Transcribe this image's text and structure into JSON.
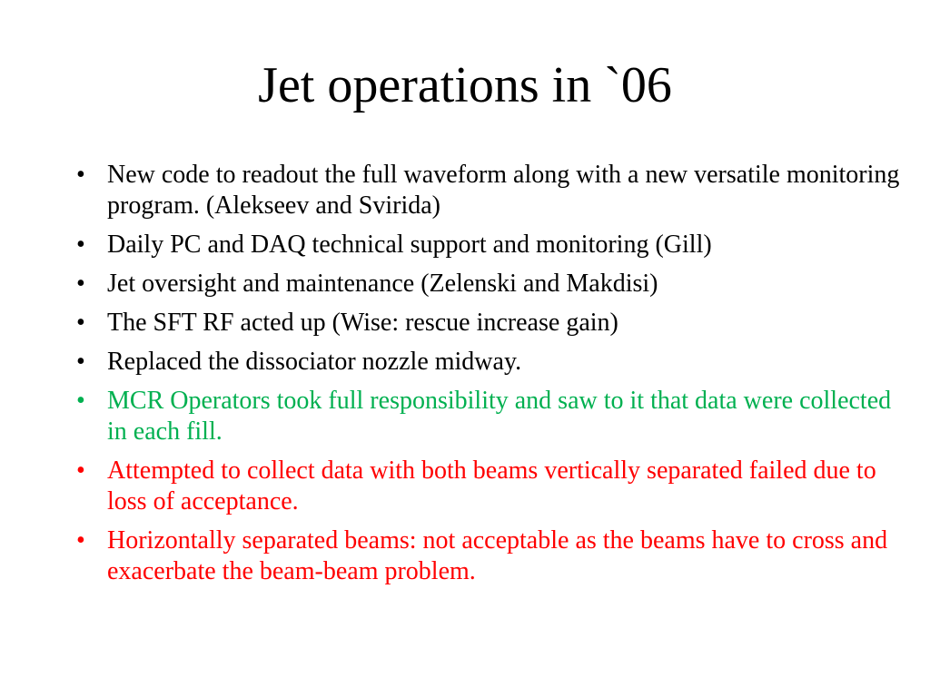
{
  "slide": {
    "title": "Jet operations in `06",
    "bullets": [
      {
        "text": "New code to readout the full waveform along with a new versatile monitoring program. (Alekseev and Svirida)",
        "color": "#000000"
      },
      {
        "text": "Daily PC and DAQ technical support and monitoring (Gill)",
        "color": "#000000"
      },
      {
        "text": "Jet oversight and maintenance (Zelenski and Makdisi)",
        "color": "#000000"
      },
      {
        "text": "The SFT RF acted up (Wise: rescue increase gain)",
        "color": "#000000"
      },
      {
        "text": "Replaced the dissociator nozzle midway.",
        "color": "#000000"
      },
      {
        "text": "MCR Operators took full responsibility and saw to it that data were collected in each fill.",
        "color": "#00b050"
      },
      {
        "text": "Attempted to collect data with both beams vertically separated failed due to loss of acceptance.",
        "color": "#ff0000"
      },
      {
        "text": "Horizontally separated beams: not acceptable as the beams have to cross and exacerbate  the beam-beam problem.",
        "color": "#ff0000"
      }
    ],
    "bullet_symbol": "•"
  }
}
